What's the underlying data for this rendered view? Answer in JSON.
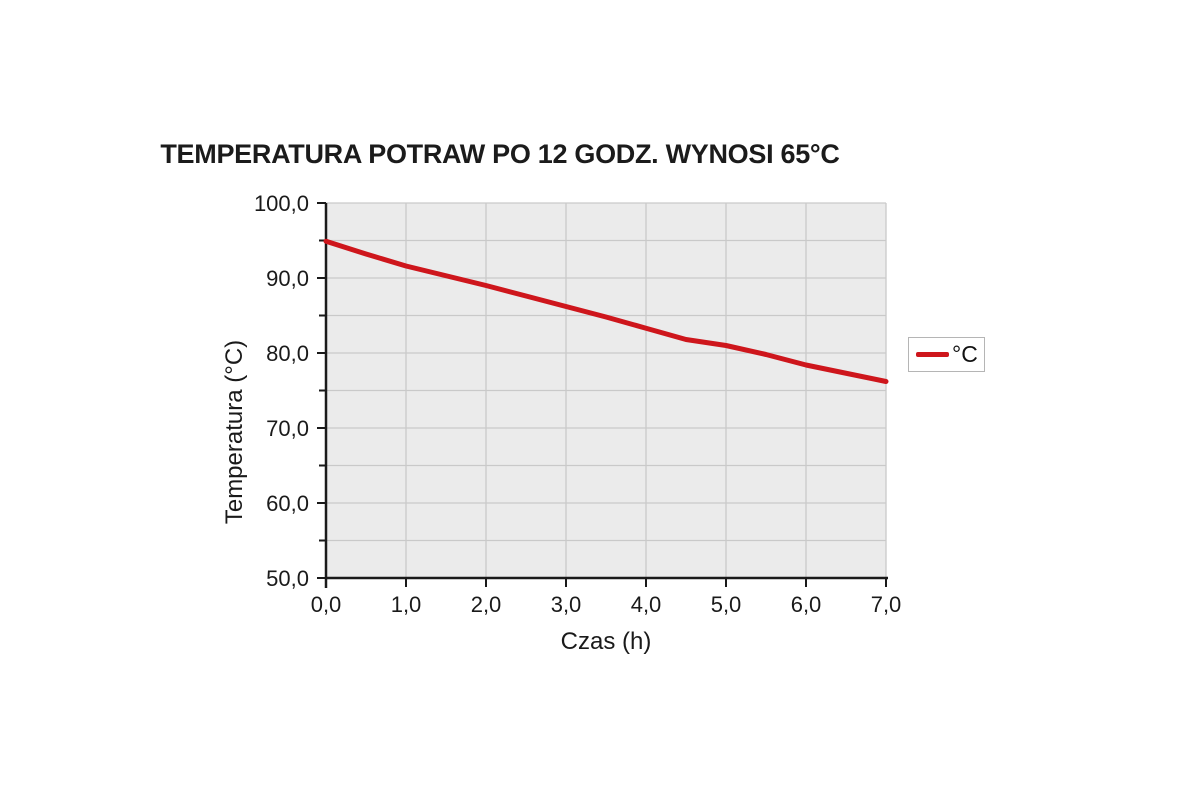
{
  "title": "TEMPERATURA POTRAW PO 12 GODZ. WYNOSI 65°C",
  "chart_data": {
    "type": "line",
    "title": "TEMPERATURA POTRAW PO 12 GODZ. WYNOSI 65°C",
    "xlabel": "Czas (h)",
    "ylabel": "Temperatura (°C)",
    "xlim": [
      0,
      7
    ],
    "ylim": [
      50,
      100
    ],
    "x": [
      0,
      0.5,
      1,
      1.5,
      2,
      2.5,
      3,
      3.5,
      4,
      4.5,
      5,
      5.5,
      6,
      6.5,
      7
    ],
    "series": [
      {
        "name": "°C",
        "color": "#ce161c",
        "values": [
          94.9,
          93.2,
          91.6,
          90.3,
          89.0,
          87.6,
          86.2,
          84.8,
          83.3,
          81.8,
          81.0,
          79.8,
          78.4,
          77.3,
          76.2
        ]
      }
    ],
    "x_ticks": [
      0,
      1,
      2,
      3,
      4,
      5,
      6,
      7
    ],
    "x_tick_labels": [
      "0,0",
      "1,0",
      "2,0",
      "3,0",
      "4,0",
      "5,0",
      "6,0",
      "7,0"
    ],
    "y_ticks_major": [
      50,
      60,
      70,
      80,
      90,
      100
    ],
    "y_tick_labels": [
      "50,0",
      "60,0",
      "70,0",
      "80,0",
      "90,0",
      "100,0"
    ],
    "y_ticks_minor": [
      55,
      65,
      75,
      85,
      95
    ],
    "grid": {
      "x_step": 1,
      "y_step": 5,
      "enabled": true
    },
    "legend_position": "right",
    "colors": {
      "plot_bg": "#ebebeb",
      "grid": "#c9c9c9",
      "axis": "#1a1a1a",
      "text": "#1a1a1a",
      "line": "#ce161c",
      "legend_border": "#b5b5b5",
      "page_bg": "#ffffff"
    }
  }
}
